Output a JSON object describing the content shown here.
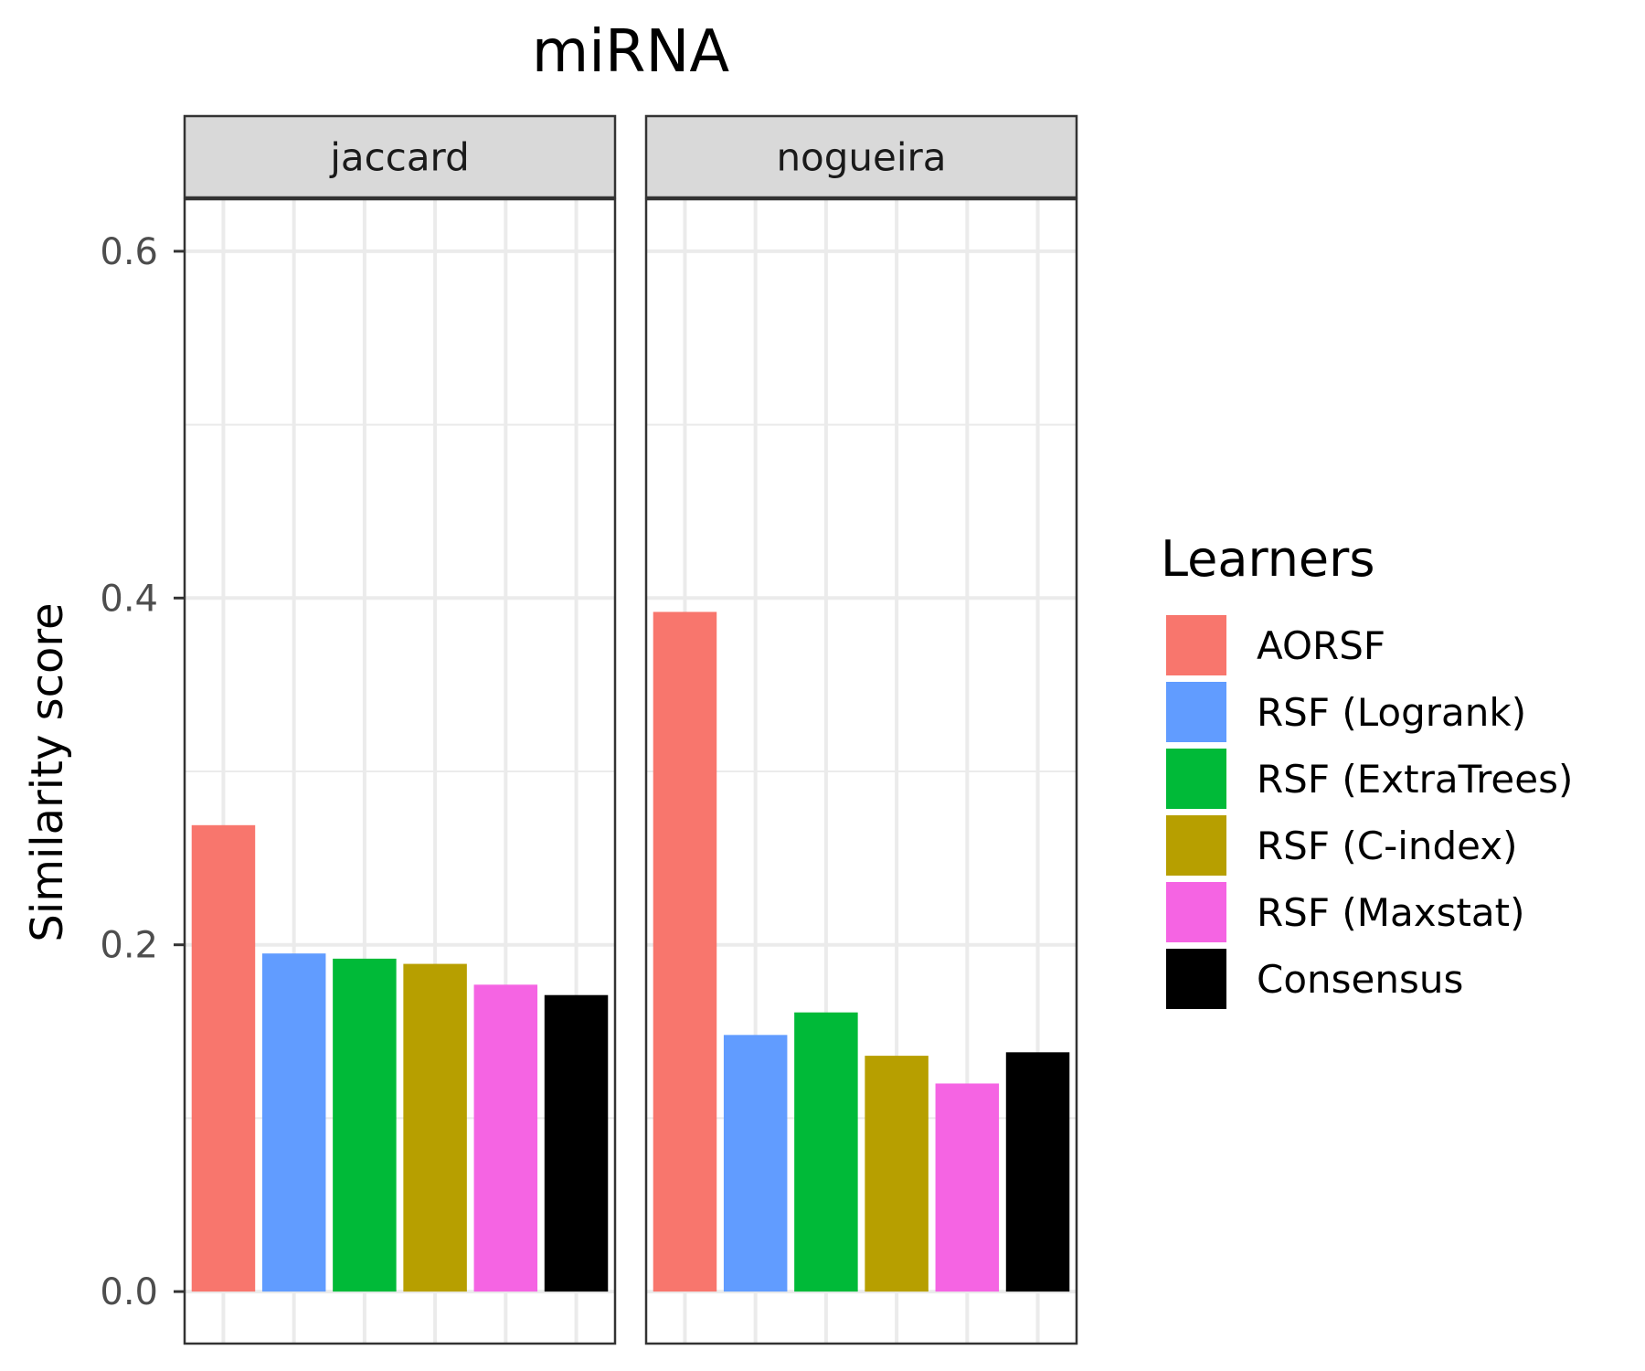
{
  "chart_data": {
    "type": "bar",
    "title": "miRNA",
    "ylabel": "Similarity score",
    "xlabel": "",
    "ylim": [
      -0.03,
      0.63
    ],
    "yticks": [
      0.0,
      0.2,
      0.4,
      0.6
    ],
    "ytick_labels": [
      "0.0",
      "0.2",
      "0.4",
      "0.6"
    ],
    "grid": true,
    "legend": {
      "title": "Learners",
      "placement": "right",
      "entries": [
        {
          "label": "AORSF",
          "color": "#F8766D"
        },
        {
          "label": "RSF (Logrank)",
          "color": "#619CFF"
        },
        {
          "label": "RSF (ExtraTrees)",
          "color": "#00BA38"
        },
        {
          "label": "RSF (C-index)",
          "color": "#B79F00"
        },
        {
          "label": "RSF (Maxstat)",
          "color": "#F564E3"
        },
        {
          "label": "Consensus",
          "color": "#000000"
        }
      ]
    },
    "categories": [
      "AORSF",
      "RSF (Logrank)",
      "RSF (ExtraTrees)",
      "RSF (C-index)",
      "RSF (Maxstat)",
      "Consensus"
    ],
    "facets": [
      {
        "name": "jaccard",
        "values": [
          0.269,
          0.195,
          0.192,
          0.189,
          0.177,
          0.171
        ]
      },
      {
        "name": "nogueira",
        "values": [
          0.392,
          0.148,
          0.161,
          0.136,
          0.12,
          0.138
        ]
      }
    ]
  }
}
